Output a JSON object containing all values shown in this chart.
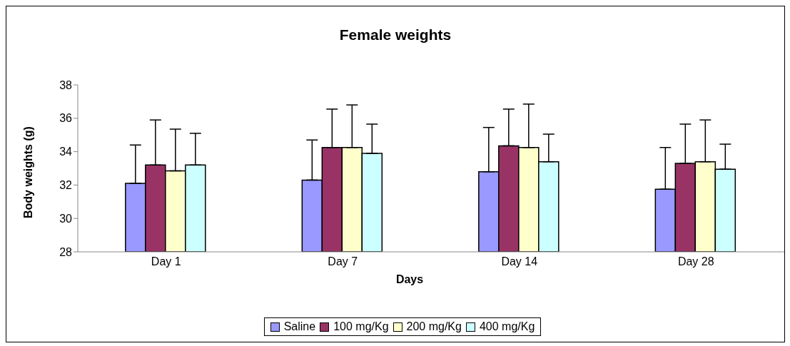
{
  "chart_data": {
    "type": "bar",
    "title": "Female weights",
    "xlabel": "Days",
    "ylabel": "Body weights (g)",
    "categories": [
      "Day 1",
      "Day 7",
      "Day 14",
      "Day 28"
    ],
    "series": [
      {
        "name": "Saline",
        "color": "#9999ff",
        "values": [
          32.1,
          32.3,
          32.8,
          31.75
        ],
        "errors": [
          [
            32.1,
            34.4
          ],
          [
            32.3,
            34.7
          ],
          [
            32.8,
            35.45
          ],
          [
            31.75,
            34.25
          ]
        ]
      },
      {
        "name": "100 mg/Kg",
        "color": "#993366",
        "values": [
          33.2,
          34.25,
          34.35,
          33.3
        ],
        "errors": [
          [
            33.2,
            35.9
          ],
          [
            34.25,
            36.55
          ],
          [
            34.35,
            36.55
          ],
          [
            33.3,
            35.65
          ]
        ]
      },
      {
        "name": "200 mg/Kg",
        "color": "#ffffcc",
        "values": [
          32.85,
          34.25,
          34.25,
          33.4
        ],
        "errors": [
          [
            32.85,
            35.35
          ],
          [
            34.25,
            36.8
          ],
          [
            34.25,
            36.85
          ],
          [
            33.4,
            35.9
          ]
        ]
      },
      {
        "name": "400 mg/Kg",
        "color": "#ccffff",
        "values": [
          33.2,
          33.9,
          33.4,
          32.95
        ],
        "errors": [
          [
            33.2,
            35.1
          ],
          [
            33.9,
            35.65
          ],
          [
            33.4,
            35.05
          ],
          [
            32.95,
            34.45
          ]
        ]
      }
    ],
    "ylim": [
      28,
      38
    ],
    "yticks": [
      28,
      30,
      32,
      34,
      36,
      38
    ],
    "grid": false,
    "legend": "bottom"
  }
}
